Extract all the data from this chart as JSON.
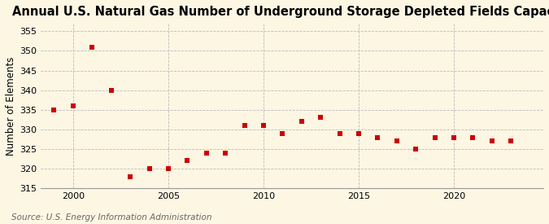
{
  "title": "Annual U.S. Natural Gas Number of Underground Storage Depleted Fields Capacity",
  "ylabel": "Number of Elements",
  "source": "Source: U.S. Energy Information Administration",
  "years": [
    1999,
    2000,
    2001,
    2002,
    2003,
    2004,
    2005,
    2006,
    2007,
    2008,
    2009,
    2010,
    2011,
    2012,
    2013,
    2014,
    2015,
    2016,
    2017,
    2018,
    2019,
    2020,
    2021,
    2022,
    2023
  ],
  "values": [
    335,
    336,
    351,
    340,
    318,
    320,
    320,
    322,
    324,
    324,
    331,
    331,
    329,
    332,
    333,
    329,
    329,
    328,
    327,
    325,
    328,
    328,
    328,
    327,
    327
  ],
  "marker_color": "#cc0000",
  "marker_size": 4,
  "bg_color": "#fdf6e3",
  "grid_color": "#bbbbbb",
  "xlim": [
    1998.3,
    2024.7
  ],
  "ylim": [
    315,
    357
  ],
  "yticks": [
    315,
    320,
    325,
    330,
    335,
    340,
    345,
    350,
    355
  ],
  "xticks": [
    2000,
    2005,
    2010,
    2015,
    2020
  ],
  "title_fontsize": 10.5,
  "ylabel_fontsize": 8.5,
  "tick_fontsize": 8,
  "source_fontsize": 7.5
}
